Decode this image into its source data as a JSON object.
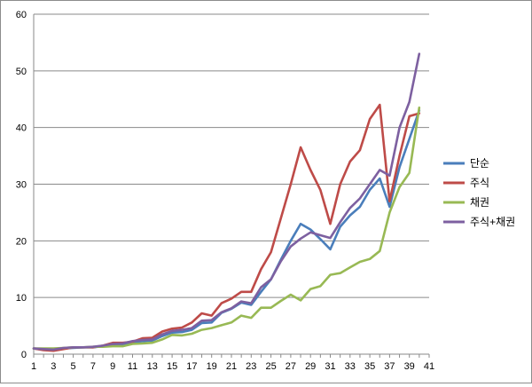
{
  "chart_data": {
    "type": "line",
    "title": "",
    "xlabel": "",
    "ylabel": "",
    "x": [
      1,
      2,
      3,
      4,
      5,
      6,
      7,
      8,
      9,
      10,
      11,
      12,
      13,
      14,
      15,
      16,
      17,
      18,
      19,
      20,
      21,
      22,
      23,
      24,
      25,
      26,
      27,
      28,
      29,
      30,
      31,
      32,
      33,
      34,
      35,
      36,
      37,
      38,
      39,
      40
    ],
    "x_ticks": [
      1,
      3,
      5,
      7,
      9,
      11,
      13,
      15,
      17,
      19,
      21,
      23,
      25,
      27,
      29,
      31,
      33,
      35,
      37,
      39,
      41
    ],
    "xlim": [
      1,
      41
    ],
    "ylim": [
      0,
      60
    ],
    "y_ticks": [
      0,
      10,
      20,
      30,
      40,
      50,
      60
    ],
    "grid": "horizontal",
    "legend_position": "right",
    "series": [
      {
        "name": "단순",
        "color": "#4a7ebb",
        "values": [
          1.0,
          0.8,
          0.7,
          1.0,
          1.1,
          1.2,
          1.2,
          1.4,
          1.6,
          1.7,
          2.0,
          2.3,
          2.4,
          3.2,
          3.8,
          3.9,
          4.3,
          5.5,
          5.6,
          7.3,
          8.0,
          9.1,
          8.7,
          11.0,
          13.2,
          16.7,
          20.0,
          23.0,
          22.0,
          20.3,
          18.5,
          22.5,
          24.5,
          26.0,
          29.0,
          31.0,
          26.0,
          33.0,
          38.0,
          43.0
        ]
      },
      {
        "name": "주식",
        "color": "#be4b48",
        "values": [
          1.0,
          0.7,
          0.6,
          0.9,
          1.2,
          1.2,
          1.2,
          1.5,
          2.0,
          2.0,
          2.2,
          2.8,
          2.9,
          4.0,
          4.5,
          4.7,
          5.6,
          7.2,
          6.8,
          9.0,
          9.8,
          11.0,
          11.0,
          15.0,
          18.0,
          24.0,
          30.0,
          36.5,
          32.5,
          29.0,
          23.0,
          30.0,
          34.0,
          36.0,
          41.5,
          44.0,
          27.0,
          35.0,
          42.0,
          42.5
        ]
      },
      {
        "name": "채권",
        "color": "#98b954",
        "values": [
          1.0,
          1.0,
          1.0,
          1.1,
          1.2,
          1.2,
          1.3,
          1.3,
          1.4,
          1.4,
          1.8,
          1.9,
          2.0,
          2.6,
          3.4,
          3.3,
          3.6,
          4.3,
          4.6,
          5.1,
          5.6,
          6.8,
          6.4,
          8.2,
          8.2,
          9.4,
          10.5,
          9.5,
          11.5,
          12.0,
          14.0,
          14.3,
          15.3,
          16.3,
          16.8,
          18.2,
          25.0,
          29.5,
          32.0,
          43.5
        ]
      },
      {
        "name": "주식+채권",
        "color": "#7d60a0",
        "values": [
          1.0,
          0.9,
          0.8,
          1.1,
          1.2,
          1.2,
          1.3,
          1.5,
          1.8,
          1.9,
          2.3,
          2.5,
          2.6,
          3.5,
          4.1,
          4.3,
          4.6,
          5.9,
          6.0,
          7.4,
          8.1,
          9.3,
          9.0,
          11.8,
          13.2,
          16.4,
          19.0,
          20.4,
          21.5,
          21.0,
          20.5,
          23.3,
          25.8,
          27.5,
          30.0,
          32.5,
          31.5,
          40.0,
          44.5,
          53.0
        ]
      }
    ]
  }
}
